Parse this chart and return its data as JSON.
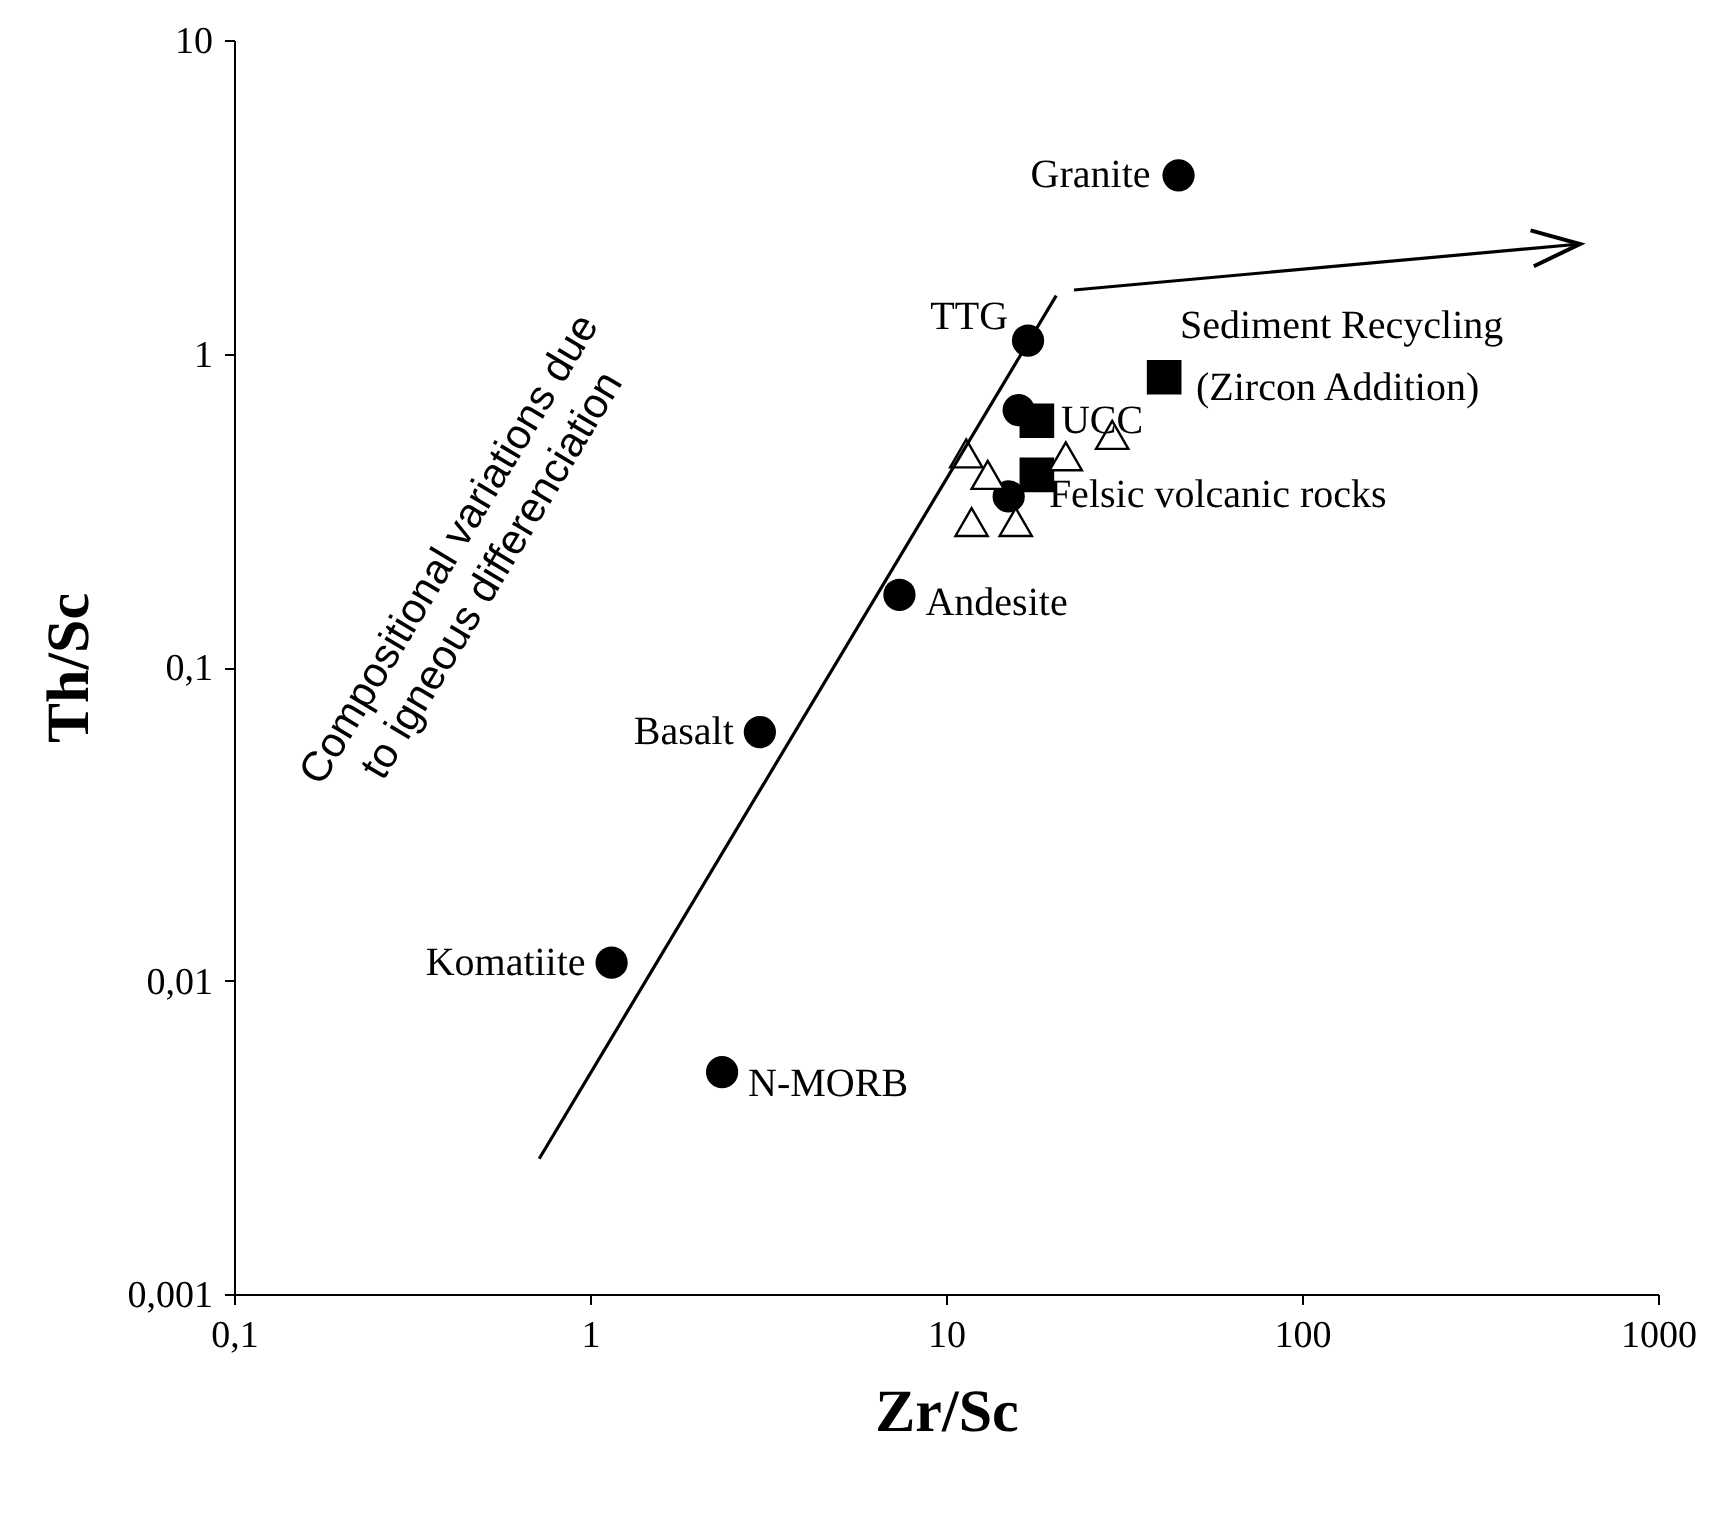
{
  "chart_data": {
    "type": "scatter",
    "xlabel": "Zr/Sc",
    "ylabel": "Th/Sc",
    "log": "xy",
    "grid": false,
    "xlim": [
      0.1,
      1000
    ],
    "ylim": [
      0.001,
      10
    ],
    "xticks": [
      {
        "value": 0.1,
        "label": "0,1"
      },
      1,
      10,
      100,
      1000
    ],
    "yticks": [
      {
        "value": 0.001,
        "label": "0,001"
      },
      {
        "value": 0.01,
        "label": "0,01"
      },
      {
        "value": 0.1,
        "label": "0,1"
      },
      1,
      10
    ],
    "series": [
      {
        "marker": "circle",
        "color": "#000000",
        "x": [
          45,
          17,
          16,
          15,
          7.4,
          3.0,
          1.15,
          2.35
        ],
        "values": [
          3.7,
          1.1,
          0.66,
          0.35,
          0.17,
          0.062,
          0.0114,
          0.0051
        ]
      },
      {
        "marker": "square",
        "color": "#000000",
        "x": [
          18,
          18,
          41
        ],
        "values": [
          0.61,
          0.41,
          0.84
        ]
      },
      {
        "marker": "triangle",
        "color": "#000000",
        "x": [
          11.4,
          13.1,
          21.7,
          29.3,
          11.8,
          15.7
        ],
        "values": [
          0.48,
          0.41,
          0.47,
          0.55,
          0.29,
          0.29
        ]
      },
      {
        "type": "line",
        "line_style": "solid",
        "color": "#000000",
        "x": [
          0.72,
          20.4
        ],
        "values": [
          0.0027,
          1.53
        ]
      }
    ],
    "annotations": [
      {
        "text": "Granite",
        "x": 45,
        "y": 3.7
      },
      {
        "text": "TTG",
        "x": 17,
        "y": 1.1
      },
      {
        "text": "UCC",
        "x": 18,
        "y": 0.61
      },
      {
        "text": "Felsic volcanic rocks",
        "x": 18,
        "y": 0.41
      },
      {
        "text": "Andesite",
        "x": 7.4,
        "y": 0.17
      },
      {
        "text": "Basalt",
        "x": 3.0,
        "y": 0.062
      },
      {
        "text": "Komatiite",
        "x": 1.15,
        "y": 0.0114
      },
      {
        "text": "N-MORB",
        "x": 2.35,
        "y": 0.0051
      },
      "Sediment Recycling",
      "(Zircon Addition)",
      "Compositional variations due",
      "to igneous differenciation"
    ]
  }
}
